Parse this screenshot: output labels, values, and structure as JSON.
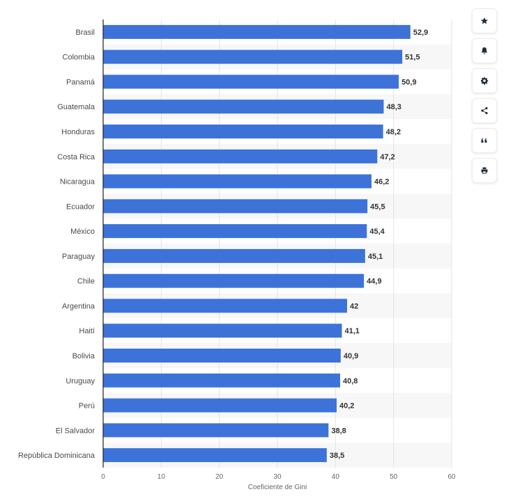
{
  "chart_data": {
    "type": "bar",
    "orientation": "horizontal",
    "categories": [
      "Brasil",
      "Colombia",
      "Panamá",
      "Guatemala",
      "Honduras",
      "Costa Rica",
      "Nicaragua",
      "Ecuador",
      "México",
      "Paraguay",
      "Chile",
      "Argentina",
      "Haití",
      "Bolivia",
      "Uruguay",
      "Perú",
      "El Salvador",
      "República Dominicana"
    ],
    "values": [
      52.9,
      51.5,
      50.9,
      48.3,
      48.2,
      47.2,
      46.2,
      45.5,
      45.4,
      45.1,
      44.9,
      42,
      41.1,
      40.9,
      40.8,
      40.2,
      38.8,
      38.5
    ],
    "value_labels": [
      "52,9",
      "51,5",
      "50,9",
      "48,3",
      "48,2",
      "47,2",
      "46,2",
      "45,5",
      "45,4",
      "45,1",
      "44,9",
      "42",
      "41,1",
      "40,9",
      "40,8",
      "40,2",
      "38,8",
      "38,5"
    ],
    "xlabel": "Coeficiente de Gini",
    "ylabel": "",
    "xlim": [
      0,
      60
    ],
    "xticks": [
      "0",
      "10",
      "20",
      "30",
      "40",
      "50",
      "60"
    ],
    "grid": true,
    "bar_color": "#3d73d9",
    "band_color": "#f7f7f7"
  },
  "toolbar": {
    "icons": [
      "star-icon",
      "bell-icon",
      "gear-icon",
      "share-icon",
      "quote-icon",
      "print-icon"
    ]
  }
}
